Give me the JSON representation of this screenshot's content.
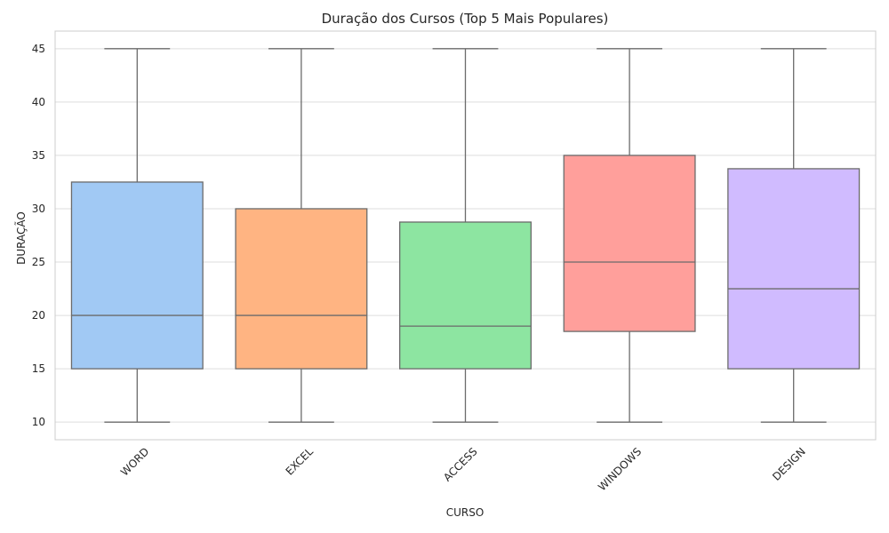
{
  "chart_data": {
    "type": "box",
    "title": "Duração dos Cursos (Top 5 Mais Populares)",
    "xlabel": "CURSO",
    "ylabel": "DURAÇÃO",
    "ylim": [
      8.35,
      46.65
    ],
    "yticks": [
      10,
      15,
      20,
      25,
      30,
      35,
      40,
      45
    ],
    "grid": true,
    "categories": [
      "WORD",
      "EXCEL",
      "ACCESS",
      "WINDOWS",
      "DESIGN"
    ],
    "boxes": [
      {
        "category": "WORD",
        "min": 10,
        "q1": 15,
        "median": 20,
        "q3": 32.5,
        "max": 45,
        "color": "#a1c9f4"
      },
      {
        "category": "EXCEL",
        "min": 10,
        "q1": 15,
        "median": 20,
        "q3": 30,
        "max": 45,
        "color": "#ffb482"
      },
      {
        "category": "ACCESS",
        "min": 10,
        "q1": 15,
        "median": 19,
        "q3": 28.75,
        "max": 45,
        "color": "#8de5a1"
      },
      {
        "category": "WINDOWS",
        "min": 10,
        "q1": 18.5,
        "median": 25,
        "q3": 35,
        "max": 45,
        "color": "#ff9f9b"
      },
      {
        "category": "DESIGN",
        "min": 10,
        "q1": 15,
        "median": 22.5,
        "q3": 33.75,
        "max": 45,
        "color": "#d0bbff"
      }
    ]
  }
}
